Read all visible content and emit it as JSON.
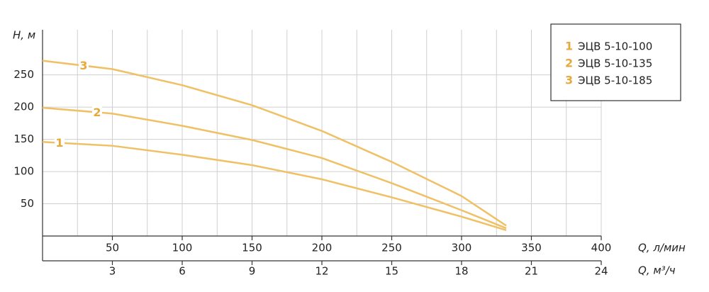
{
  "chart_data": {
    "type": "line",
    "y_label": "H, м",
    "x_label": "Q, л/мин",
    "x2_label": "Q, м³/ч",
    "x": [
      0,
      50,
      100,
      150,
      200,
      250,
      300,
      332
    ],
    "series": [
      {
        "name": "ЭЦВ 5-10-100",
        "label": "1",
        "color": "#efc064",
        "values": [
          146,
          140,
          126,
          110,
          88,
          60,
          30,
          9
        ]
      },
      {
        "name": "ЭЦВ 5-10-135",
        "label": "2",
        "color": "#efc064",
        "values": [
          199,
          190,
          171,
          149,
          121,
          82,
          40,
          12
        ]
      },
      {
        "name": "ЭЦВ 5-10-185",
        "label": "3",
        "color": "#efc064",
        "values": [
          272,
          259,
          234,
          203,
          163,
          115,
          62,
          16
        ]
      }
    ],
    "label_color": "#e8a93a",
    "xlim": [
      0,
      400
    ],
    "xticks": [
      50,
      100,
      150,
      200,
      250,
      300,
      350,
      400
    ],
    "xminorticks": [
      25,
      75,
      125,
      175,
      225,
      275,
      325,
      375
    ],
    "x2lim": [
      0,
      24
    ],
    "x2ticks": [
      3,
      6,
      9,
      12,
      15,
      18,
      21,
      24
    ],
    "ylim": [
      0,
      320
    ],
    "yticks": [
      50,
      100,
      150,
      200,
      250
    ],
    "grid": true
  }
}
